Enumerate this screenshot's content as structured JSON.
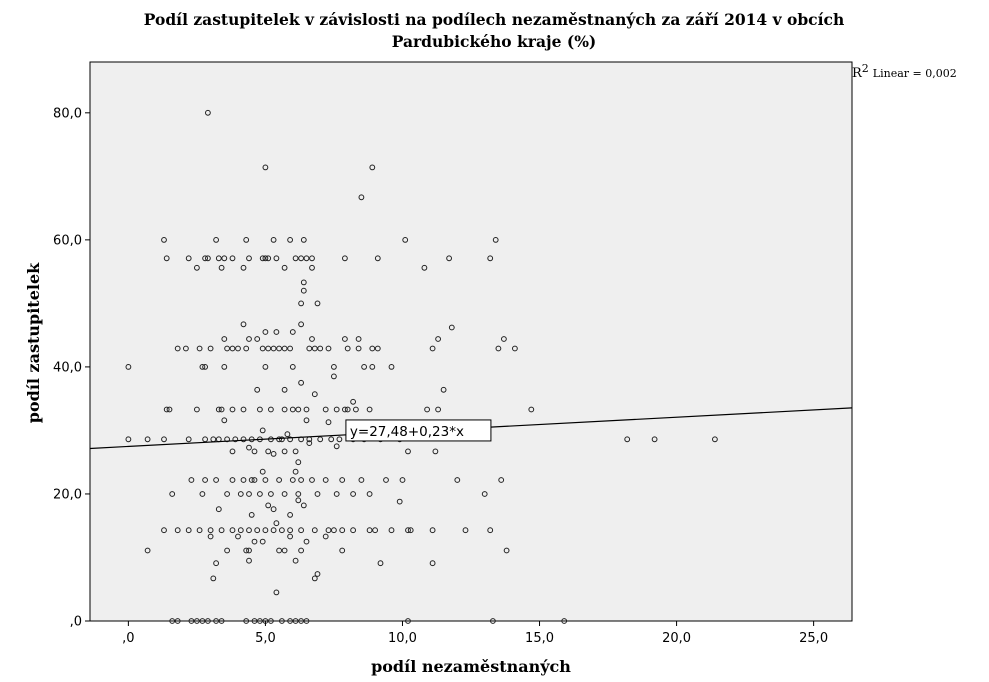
{
  "chart_data": {
    "type": "scatter",
    "title_line1": "Podíl zastupitelek v závislosti na podílech nezaměstnaných za září 2014 v obcích",
    "title_line2": "Pardubického kraje (%)",
    "xlabel": "podíl nezaměstnaných",
    "ylabel": "podíl zastupitelek",
    "xlim": [
      -1.4,
      26.4
    ],
    "ylim": [
      0,
      88
    ],
    "x_ticks": [
      0,
      5,
      10,
      15,
      20,
      25
    ],
    "x_tick_labels": [
      ",0",
      "5,0",
      "10,0",
      "15,0",
      "20,0",
      "25,0"
    ],
    "y_ticks": [
      0,
      20,
      40,
      60,
      80
    ],
    "y_tick_labels": [
      ",0",
      "20,0",
      "40,0",
      "60,0",
      "80,0"
    ],
    "grid": false,
    "background": "#efefef",
    "marker_color": "#222222",
    "fit_line": {
      "intercept": 27.48,
      "slope": 0.23,
      "label": "y=27,48+0,23*x",
      "label_x": 10.6
    },
    "r2_label": {
      "prefix": "R",
      "sup": "2",
      "text": "Linear = 0,002"
    },
    "points": [
      [
        2.9,
        80.0
      ],
      [
        5.0,
        71.4
      ],
      [
        8.9,
        71.4
      ],
      [
        8.5,
        66.7
      ],
      [
        1.3,
        60.0
      ],
      [
        3.2,
        60.0
      ],
      [
        4.3,
        60.0
      ],
      [
        5.3,
        60.0
      ],
      [
        5.9,
        60.0
      ],
      [
        6.4,
        60.0
      ],
      [
        10.1,
        60.0
      ],
      [
        13.4,
        60.0
      ],
      [
        1.4,
        57.1
      ],
      [
        2.2,
        57.1
      ],
      [
        2.8,
        57.1
      ],
      [
        2.9,
        57.1
      ],
      [
        3.3,
        57.1
      ],
      [
        3.5,
        57.1
      ],
      [
        3.8,
        57.1
      ],
      [
        4.4,
        57.1
      ],
      [
        4.9,
        57.1
      ],
      [
        5.0,
        57.1
      ],
      [
        5.1,
        57.1
      ],
      [
        5.4,
        57.1
      ],
      [
        6.1,
        57.1
      ],
      [
        6.3,
        57.1
      ],
      [
        6.5,
        57.1
      ],
      [
        6.7,
        57.1
      ],
      [
        7.9,
        57.1
      ],
      [
        9.1,
        57.1
      ],
      [
        11.7,
        57.1
      ],
      [
        13.2,
        57.1
      ],
      [
        2.5,
        55.6
      ],
      [
        3.4,
        55.6
      ],
      [
        4.2,
        55.6
      ],
      [
        5.7,
        55.6
      ],
      [
        6.7,
        55.6
      ],
      [
        10.8,
        55.6
      ],
      [
        6.4,
        53.3
      ],
      [
        6.4,
        52.0
      ],
      [
        6.3,
        50.0
      ],
      [
        6.9,
        50.0
      ],
      [
        4.2,
        46.7
      ],
      [
        6.3,
        46.7
      ],
      [
        11.8,
        46.2
      ],
      [
        5.0,
        45.5
      ],
      [
        5.4,
        45.5
      ],
      [
        6.0,
        45.5
      ],
      [
        3.5,
        44.4
      ],
      [
        4.4,
        44.4
      ],
      [
        4.7,
        44.4
      ],
      [
        6.7,
        44.4
      ],
      [
        7.9,
        44.4
      ],
      [
        8.4,
        44.4
      ],
      [
        11.3,
        44.4
      ],
      [
        13.7,
        44.4
      ],
      [
        1.8,
        42.9
      ],
      [
        2.1,
        42.9
      ],
      [
        2.6,
        42.9
      ],
      [
        3.0,
        42.9
      ],
      [
        3.6,
        42.9
      ],
      [
        3.8,
        42.9
      ],
      [
        4.0,
        42.9
      ],
      [
        4.3,
        42.9
      ],
      [
        4.9,
        42.9
      ],
      [
        5.1,
        42.9
      ],
      [
        5.3,
        42.9
      ],
      [
        5.5,
        42.9
      ],
      [
        5.7,
        42.9
      ],
      [
        5.9,
        42.9
      ],
      [
        6.6,
        42.9
      ],
      [
        6.8,
        42.9
      ],
      [
        7.0,
        42.9
      ],
      [
        7.3,
        42.9
      ],
      [
        8.0,
        42.9
      ],
      [
        8.4,
        42.9
      ],
      [
        8.9,
        42.9
      ],
      [
        9.1,
        42.9
      ],
      [
        11.1,
        42.9
      ],
      [
        13.5,
        42.9
      ],
      [
        14.1,
        42.9
      ],
      [
        2.8,
        40.0
      ],
      [
        3.5,
        40.0
      ],
      [
        5.0,
        40.0
      ],
      [
        6.0,
        40.0
      ],
      [
        7.5,
        40.0
      ],
      [
        8.6,
        40.0
      ],
      [
        9.6,
        40.0
      ],
      [
        0.0,
        40.0
      ],
      [
        2.7,
        40.0
      ],
      [
        8.9,
        40.0
      ],
      [
        7.5,
        38.5
      ],
      [
        6.3,
        37.5
      ],
      [
        11.5,
        36.4
      ],
      [
        4.7,
        36.4
      ],
      [
        5.7,
        36.4
      ],
      [
        6.8,
        35.7
      ],
      [
        8.2,
        34.5
      ],
      [
        1.4,
        33.3
      ],
      [
        2.5,
        33.3
      ],
      [
        3.4,
        33.3
      ],
      [
        3.8,
        33.3
      ],
      [
        4.2,
        33.3
      ],
      [
        4.8,
        33.3
      ],
      [
        5.2,
        33.3
      ],
      [
        5.7,
        33.3
      ],
      [
        6.2,
        33.3
      ],
      [
        6.5,
        33.3
      ],
      [
        7.2,
        33.3
      ],
      [
        7.6,
        33.3
      ],
      [
        8.0,
        33.3
      ],
      [
        8.3,
        33.3
      ],
      [
        8.8,
        33.3
      ],
      [
        10.9,
        33.3
      ],
      [
        11.3,
        33.3
      ],
      [
        14.7,
        33.3
      ],
      [
        1.5,
        33.3
      ],
      [
        3.3,
        33.3
      ],
      [
        6.0,
        33.3
      ],
      [
        7.9,
        33.3
      ],
      [
        3.5,
        31.6
      ],
      [
        6.5,
        31.6
      ],
      [
        7.3,
        31.3
      ],
      [
        4.9,
        30.0
      ],
      [
        0.0,
        28.6
      ],
      [
        0.7,
        28.6
      ],
      [
        1.3,
        28.6
      ],
      [
        2.2,
        28.6
      ],
      [
        2.8,
        28.6
      ],
      [
        3.1,
        28.6
      ],
      [
        3.3,
        28.6
      ],
      [
        3.6,
        28.6
      ],
      [
        3.9,
        28.6
      ],
      [
        4.2,
        28.6
      ],
      [
        4.5,
        28.6
      ],
      [
        4.8,
        28.6
      ],
      [
        5.2,
        28.6
      ],
      [
        5.6,
        28.6
      ],
      [
        5.9,
        28.6
      ],
      [
        6.3,
        28.6
      ],
      [
        6.6,
        28.6
      ],
      [
        7.0,
        28.6
      ],
      [
        7.4,
        28.6
      ],
      [
        7.7,
        28.6
      ],
      [
        8.2,
        28.6
      ],
      [
        8.6,
        28.6
      ],
      [
        9.2,
        28.6
      ],
      [
        9.9,
        28.6
      ],
      [
        18.2,
        28.6
      ],
      [
        19.2,
        28.6
      ],
      [
        21.4,
        28.6
      ],
      [
        5.5,
        28.6
      ],
      [
        5.8,
        29.4
      ],
      [
        6.6,
        28.0
      ],
      [
        7.6,
        27.5
      ],
      [
        4.4,
        27.3
      ],
      [
        3.8,
        26.7
      ],
      [
        4.6,
        26.7
      ],
      [
        5.1,
        26.7
      ],
      [
        5.7,
        26.7
      ],
      [
        6.1,
        26.7
      ],
      [
        10.2,
        26.7
      ],
      [
        11.2,
        26.7
      ],
      [
        5.3,
        26.3
      ],
      [
        6.2,
        25.0
      ],
      [
        4.9,
        23.5
      ],
      [
        6.1,
        23.5
      ],
      [
        2.3,
        22.2
      ],
      [
        3.2,
        22.2
      ],
      [
        3.8,
        22.2
      ],
      [
        4.2,
        22.2
      ],
      [
        4.5,
        22.2
      ],
      [
        5.0,
        22.2
      ],
      [
        5.5,
        22.2
      ],
      [
        6.0,
        22.2
      ],
      [
        6.7,
        22.2
      ],
      [
        7.2,
        22.2
      ],
      [
        7.8,
        22.2
      ],
      [
        8.5,
        22.2
      ],
      [
        9.4,
        22.2
      ],
      [
        10.0,
        22.2
      ],
      [
        12.0,
        22.2
      ],
      [
        13.6,
        22.2
      ],
      [
        2.8,
        22.2
      ],
      [
        4.6,
        22.2
      ],
      [
        6.3,
        22.2
      ],
      [
        1.6,
        20.0
      ],
      [
        2.7,
        20.0
      ],
      [
        3.6,
        20.0
      ],
      [
        4.1,
        20.0
      ],
      [
        4.4,
        20.0
      ],
      [
        4.8,
        20.0
      ],
      [
        5.2,
        20.0
      ],
      [
        5.7,
        20.0
      ],
      [
        6.2,
        20.0
      ],
      [
        6.9,
        20.0
      ],
      [
        7.6,
        20.0
      ],
      [
        8.2,
        20.0
      ],
      [
        8.8,
        20.0
      ],
      [
        13.0,
        20.0
      ],
      [
        6.2,
        19.0
      ],
      [
        6.4,
        18.2
      ],
      [
        9.9,
        18.8
      ],
      [
        5.1,
        18.2
      ],
      [
        5.9,
        16.7
      ],
      [
        4.5,
        16.7
      ],
      [
        5.4,
        15.4
      ],
      [
        5.3,
        17.6
      ],
      [
        3.3,
        17.6
      ],
      [
        1.3,
        14.3
      ],
      [
        1.8,
        14.3
      ],
      [
        2.2,
        14.3
      ],
      [
        2.6,
        14.3
      ],
      [
        3.0,
        14.3
      ],
      [
        3.4,
        14.3
      ],
      [
        3.8,
        14.3
      ],
      [
        4.1,
        14.3
      ],
      [
        4.4,
        14.3
      ],
      [
        4.7,
        14.3
      ],
      [
        5.0,
        14.3
      ],
      [
        5.3,
        14.3
      ],
      [
        5.6,
        14.3
      ],
      [
        5.9,
        14.3
      ],
      [
        6.3,
        14.3
      ],
      [
        6.8,
        14.3
      ],
      [
        7.3,
        14.3
      ],
      [
        7.8,
        14.3
      ],
      [
        8.2,
        14.3
      ],
      [
        9.0,
        14.3
      ],
      [
        9.6,
        14.3
      ],
      [
        10.2,
        14.3
      ],
      [
        11.1,
        14.3
      ],
      [
        12.3,
        14.3
      ],
      [
        13.2,
        14.3
      ],
      [
        7.5,
        14.3
      ],
      [
        8.8,
        14.3
      ],
      [
        10.3,
        14.3
      ],
      [
        3.0,
        13.3
      ],
      [
        4.0,
        13.3
      ],
      [
        5.9,
        13.3
      ],
      [
        7.2,
        13.3
      ],
      [
        4.6,
        12.5
      ],
      [
        6.5,
        12.5
      ],
      [
        4.9,
        12.5
      ],
      [
        0.7,
        11.1
      ],
      [
        3.6,
        11.1
      ],
      [
        4.3,
        11.1
      ],
      [
        5.5,
        11.1
      ],
      [
        6.3,
        11.1
      ],
      [
        7.8,
        11.1
      ],
      [
        13.8,
        11.1
      ],
      [
        5.7,
        11.1
      ],
      [
        4.4,
        11.1
      ],
      [
        4.4,
        9.5
      ],
      [
        6.1,
        9.5
      ],
      [
        3.2,
        9.1
      ],
      [
        9.2,
        9.1
      ],
      [
        11.1,
        9.1
      ],
      [
        6.9,
        7.4
      ],
      [
        6.8,
        6.7
      ],
      [
        3.1,
        6.7
      ],
      [
        5.4,
        4.5
      ],
      [
        1.6,
        0.0
      ],
      [
        1.8,
        0.0
      ],
      [
        2.3,
        0.0
      ],
      [
        2.5,
        0.0
      ],
      [
        2.7,
        0.0
      ],
      [
        2.9,
        0.0
      ],
      [
        3.2,
        0.0
      ],
      [
        3.4,
        0.0
      ],
      [
        4.3,
        0.0
      ],
      [
        4.6,
        0.0
      ],
      [
        4.8,
        0.0
      ],
      [
        5.0,
        0.0
      ],
      [
        5.2,
        0.0
      ],
      [
        5.6,
        0.0
      ],
      [
        5.9,
        0.0
      ],
      [
        6.1,
        0.0
      ],
      [
        6.3,
        0.0
      ],
      [
        6.5,
        0.0
      ],
      [
        10.2,
        0.0
      ],
      [
        13.3,
        0.0
      ],
      [
        15.9,
        0.0
      ]
    ]
  }
}
